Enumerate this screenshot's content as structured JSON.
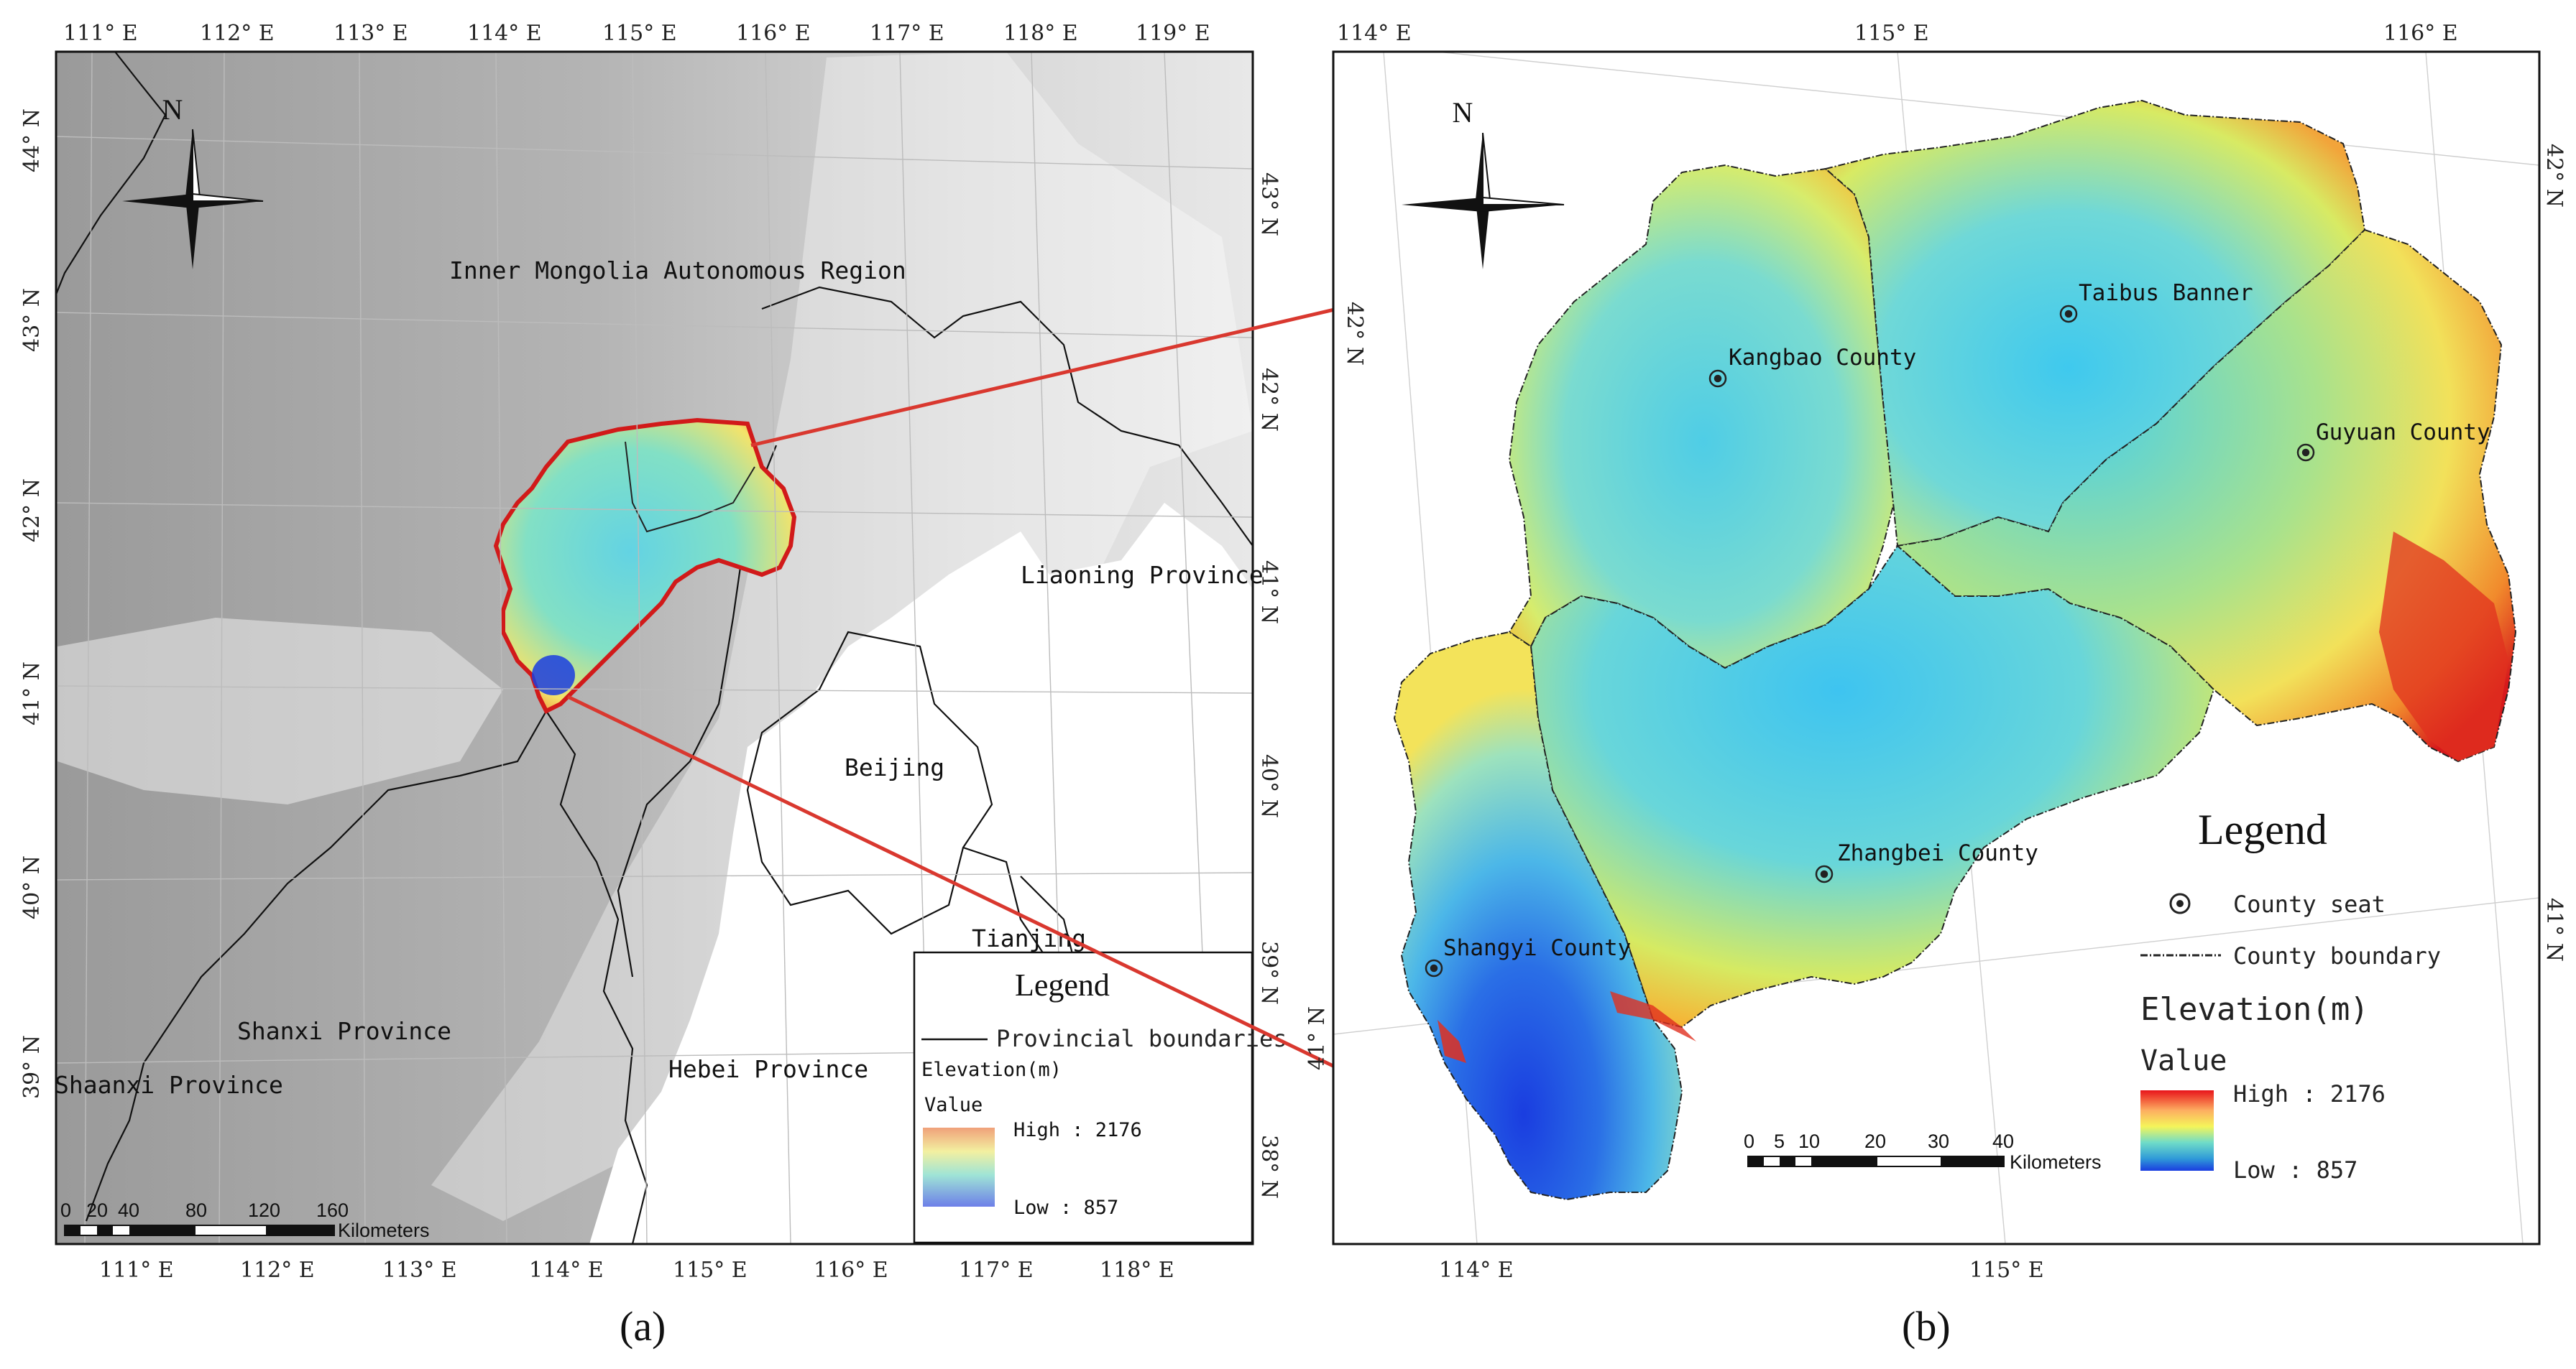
{
  "panel_a": {
    "caption": "(a)",
    "top_ticks": [
      "111° E",
      "112° E",
      "113° E",
      "114° E",
      "115° E",
      "116° E",
      "117° E",
      "118° E",
      "119° E"
    ],
    "bottom_ticks": [
      "111° E",
      "112° E",
      "113° E",
      "114° E",
      "115° E",
      "116° E",
      "117° E",
      "118° E"
    ],
    "left_ticks": [
      "44° N",
      "43° N",
      "42° N",
      "41° N",
      "40° N",
      "39° N"
    ],
    "right_ticks": [
      "43° N",
      "42° N",
      "41° N",
      "40° N",
      "39° N",
      "38° N"
    ],
    "north_label": "N",
    "labels": {
      "inner_mongolia": "Inner Mongolia Autonomous Region",
      "liaoning": "Liaoning Province",
      "beijing": "Beijing",
      "tianjing": "Tianjing",
      "shanxi": "Shanxi Province",
      "shaanxi": "Shaanxi Province",
      "hebei": "Hebei Province"
    },
    "legend": {
      "title": "Legend",
      "boundary_label": "Provincial boundaries",
      "elevation_label": "Elevation(m)",
      "value_label": "Value",
      "high": "High : 2176",
      "low": "Low : 857"
    },
    "scale": {
      "ticks": [
        "0",
        "20",
        "40",
        "80",
        "120",
        "160"
      ],
      "unit": "Kilometers"
    }
  },
  "panel_b": {
    "caption": "(b)",
    "top_ticks": [
      "114° E",
      "115° E",
      "116° E"
    ],
    "bottom_ticks": [
      "114° E",
      "115° E"
    ],
    "left_ticks": [
      "41° N"
    ],
    "right_ticks": [
      "42° N",
      "41° N"
    ],
    "inner_ticks": [
      "42° N"
    ],
    "north_label": "N",
    "counties": {
      "taibus": "Taibus Banner",
      "kangbao": "Kangbao County",
      "guyuan": "Guyuan County",
      "zhangbei": "Zhangbei County",
      "shangyi": "Shangyi County"
    },
    "legend": {
      "title": "Legend",
      "seat_label": "County seat",
      "boundary_label": "County boundary",
      "elevation_label": "Elevation(m)",
      "value_label": "Value",
      "high": "High : 2176",
      "low": "Low : 857"
    },
    "scale": {
      "ticks": [
        "0",
        "5",
        "10",
        "20",
        "30",
        "40"
      ],
      "unit": "Kilometers"
    }
  },
  "colors": {
    "connector": "#d9382f",
    "region_outline": "#d11a1a",
    "ramp": [
      "#d7191c",
      "#fdae61",
      "#ffff73",
      "#abdda4",
      "#2b83ba",
      "#1a3de0"
    ]
  }
}
